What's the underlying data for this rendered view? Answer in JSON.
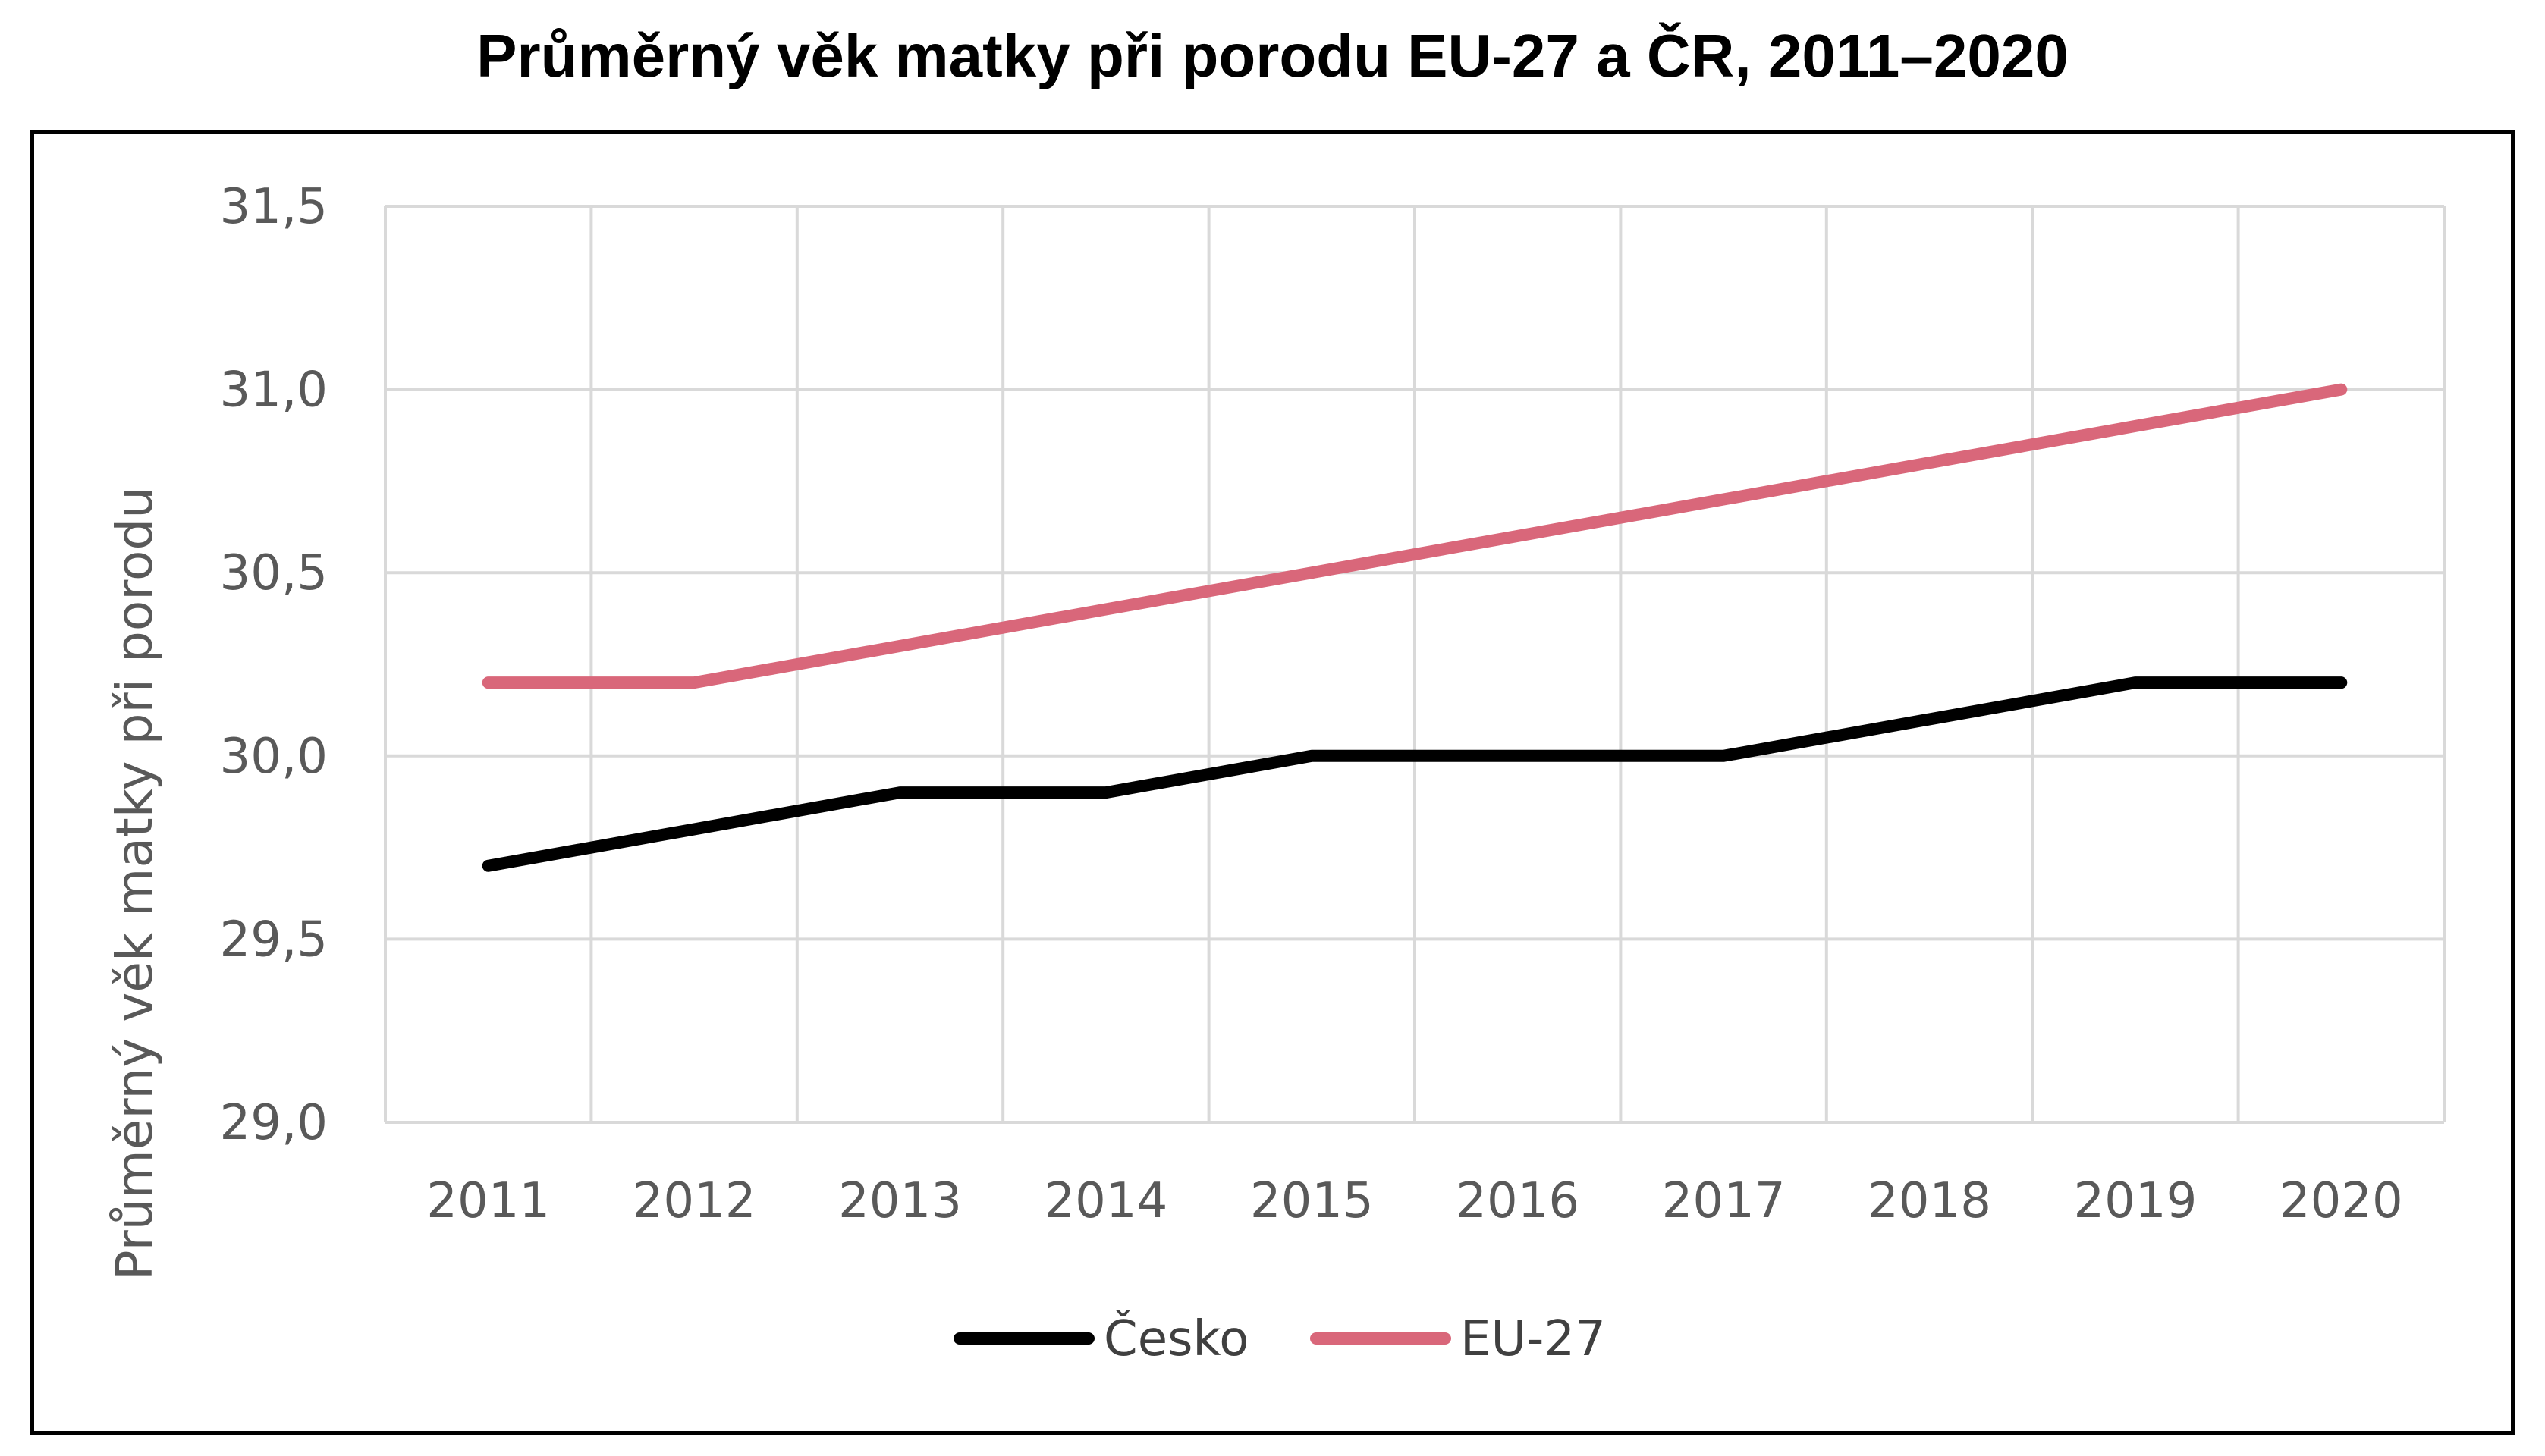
{
  "chart_data": {
    "type": "line",
    "title": "Průměrný věk matky při porodu EU-27 a ČR, 2011–2020",
    "xlabel": "",
    "ylabel": "Průměrný věk matky při porodu",
    "categories": [
      "2011",
      "2012",
      "2013",
      "2014",
      "2015",
      "2016",
      "2017",
      "2018",
      "2019",
      "2020"
    ],
    "ylim": [
      29.0,
      31.5
    ],
    "yticks": [
      "29,0",
      "29,5",
      "30,0",
      "30,5",
      "31,0",
      "31,5"
    ],
    "grid": true,
    "legend_position": "bottom",
    "series": [
      {
        "name": "Česko",
        "color": "#000000",
        "values": [
          29.7,
          29.8,
          29.9,
          29.9,
          30.0,
          30.0,
          30.0,
          30.1,
          30.2,
          30.2
        ]
      },
      {
        "name": "EU-27",
        "color": "#d9677a",
        "values": [
          30.2,
          30.2,
          30.3,
          30.4,
          30.5,
          30.6,
          30.7,
          30.8,
          30.9,
          31.0
        ]
      }
    ]
  }
}
